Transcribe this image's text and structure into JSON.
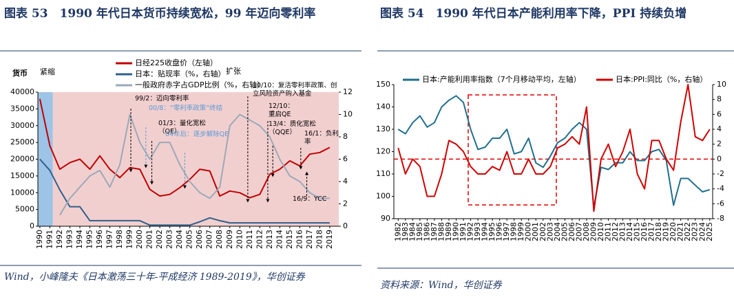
{
  "chart_data": [
    {
      "type": "line",
      "title": "图表 53　1990 年代日本货币持续宽松，99 年迈向零利率",
      "source": "Wind，小峰隆夫《日本激荡三十年-平成经济 1989-2019》，华创证券",
      "y_label": "货币",
      "x": [
        1990,
        1991,
        1992,
        1993,
        1994,
        1995,
        1996,
        1997,
        1998,
        1999,
        2000,
        2001,
        2002,
        2003,
        2004,
        2005,
        2006,
        2007,
        2008,
        2009,
        2010,
        2011,
        2012,
        2013,
        2014,
        2015,
        2016,
        2017,
        2018,
        2019
      ],
      "xlim": [
        1989.8,
        2019.9
      ],
      "xticks": [
        1990,
        1991,
        1992,
        1993,
        1994,
        1995,
        1996,
        1997,
        1998,
        1999,
        2000,
        2001,
        2002,
        2003,
        2004,
        2005,
        2006,
        2007,
        2008,
        2009,
        2010,
        2011,
        2012,
        2013,
        2014,
        2015,
        2016,
        2017,
        2018,
        2019
      ],
      "ylim": [
        0,
        40000
      ],
      "yticks": [
        0,
        5000,
        10000,
        15000,
        20000,
        25000,
        30000,
        35000,
        40000
      ],
      "y2lim": [
        0,
        12
      ],
      "y2ticks": [
        0,
        2,
        4,
        6,
        8,
        10,
        12
      ],
      "periods": [
        {
          "label": "紧缩",
          "start": 1989.8,
          "end": 1991.3,
          "color": "#9dc3e6"
        },
        {
          "label": "扩张",
          "start": 1991.3,
          "end": 2019.9,
          "color": "#f2cfcf"
        }
      ],
      "series": [
        {
          "name": "日经225收盘价（左轴）",
          "color": "#c00000",
          "values": [
            38000,
            24000,
            17000,
            19000,
            20000,
            17000,
            21000,
            17000,
            14500,
            17500,
            17000,
            11000,
            9000,
            9500,
            11500,
            14000,
            17000,
            16500,
            9000,
            10500,
            10000,
            8500,
            9500,
            15500,
            17000,
            19500,
            18000,
            21500,
            22000,
            23500
          ]
        },
        {
          "name": "日本：贴现率（%，右轴）",
          "color": "#2f5f8a",
          "axis": "y2",
          "values": [
            6,
            5,
            3.25,
            1.75,
            1.75,
            0.5,
            0.5,
            0.5,
            0.5,
            0.5,
            0.5,
            0.1,
            0.1,
            0.1,
            0.1,
            0.1,
            0.4,
            0.75,
            0.5,
            0.3,
            0.3,
            0.3,
            0.3,
            0.3,
            0.3,
            0.3,
            0.3,
            0.3,
            0.3,
            0.3
          ]
        },
        {
          "name": "一般政府赤字占GDP比例（%，右轴）",
          "color": "#9aa9b8",
          "axis": "y2",
          "values": [
            null,
            null,
            1,
            2.5,
            3.5,
            4.5,
            5,
            3.5,
            5.5,
            10,
            7.5,
            6,
            7.5,
            7.5,
            5.5,
            4,
            3,
            2.5,
            3.5,
            9,
            10,
            9.5,
            9,
            8,
            6,
            4.5,
            4,
            3,
            2.5,
            2.5
          ]
        }
      ],
      "annotations": [
        {
          "x": 1999.1,
          "text": "99/2：迈向零利率",
          "color": "#000000"
        },
        {
          "x": 2000.6,
          "text": "00/8：“零利率政策”终结",
          "color": "#5b9bd5"
        },
        {
          "x": 2001.2,
          "text": "01/3：量化宽松（QE）",
          "color": "#000000"
        },
        {
          "x": 2004.5,
          "text": "04年后：逐步解除QE",
          "color": "#5b9bd5"
        },
        {
          "x": 2010.8,
          "text": "10/10：复活零利率政策、创立风险资产购入基金",
          "color": "#000000"
        },
        {
          "x": 2012.8,
          "text": "12/10：重启QE",
          "color": "#000000"
        },
        {
          "x": 2013.3,
          "text": "13/4：质化宽松（QQE）",
          "color": "#000000"
        },
        {
          "x": 2016.1,
          "text": "16/1：负利率",
          "color": "#000000"
        },
        {
          "x": 2016.7,
          "text": "16/9：YCC",
          "color": "#000000"
        }
      ]
    },
    {
      "type": "line",
      "title": "图表 54　1990 年代日本产能利用率下降，PPI 持续负增",
      "source": "资料来源：Wind，华创证券",
      "x": [
        1982,
        1983,
        1984,
        1985,
        1986,
        1987,
        1988,
        1989,
        1990,
        1991,
        1992,
        1993,
        1994,
        1995,
        1996,
        1997,
        1998,
        1999,
        2000,
        2001,
        2002,
        2003,
        2004,
        2005,
        2006,
        2007,
        2008,
        2009,
        2010,
        2011,
        2012,
        2013,
        2014,
        2015,
        2016,
        2017,
        2018,
        2019,
        2020,
        2021,
        2022,
        2023,
        2024,
        2025
      ],
      "xlim": [
        1981.4,
        2025.4
      ],
      "xticks": [
        1982,
        1983,
        1984,
        1985,
        1986,
        1987,
        1988,
        1989,
        1990,
        1991,
        1992,
        1993,
        1994,
        1995,
        1996,
        1997,
        1998,
        1999,
        2000,
        2001,
        2002,
        2003,
        2004,
        2005,
        2006,
        2007,
        2008,
        2009,
        2010,
        2011,
        2012,
        2013,
        2014,
        2015,
        2016,
        2017,
        2018,
        2019,
        2020,
        2021,
        2022,
        2023,
        2024,
        2025
      ],
      "ylim": [
        90,
        150
      ],
      "yticks": [
        90,
        100,
        110,
        120,
        130,
        140,
        150
      ],
      "y2lim": [
        -8,
        10
      ],
      "y2ticks": [
        -8,
        -6,
        -4,
        -2,
        0,
        2,
        4,
        6,
        8,
        10
      ],
      "hline": {
        "value": 0,
        "axis": "y2",
        "color": "#e00000"
      },
      "series": [
        {
          "name": "日本:产能利用率指数（7个月移动平均，左轴）",
          "color": "#1f6e8c",
          "values": [
            130,
            128,
            133,
            136,
            131,
            133,
            140,
            143,
            145,
            142,
            130,
            121,
            122,
            126,
            126,
            130,
            119,
            120,
            126,
            115,
            113,
            118,
            124,
            126,
            130,
            133,
            130,
            95,
            113,
            112,
            115,
            115,
            120,
            116,
            116,
            120,
            121,
            116,
            96,
            108,
            108,
            105,
            102,
            103
          ]
        },
        {
          "name": "日本:PPI:同比（%，右轴）",
          "color": "#d00000",
          "axis": "y2",
          "values": [
            1.5,
            -2,
            0,
            -1,
            -5,
            -5,
            -2,
            2.5,
            2,
            1,
            -1,
            -2,
            -2,
            -1,
            -1.5,
            1,
            -2,
            -2,
            0,
            -2,
            -2,
            -1,
            1.5,
            2,
            3,
            2,
            7,
            -7,
            0,
            2,
            -1,
            1,
            4,
            -2,
            -4,
            2.5,
            2.5,
            0,
            -1.5,
            5,
            10,
            3,
            2.5,
            4
          ]
        }
      ]
    }
  ]
}
